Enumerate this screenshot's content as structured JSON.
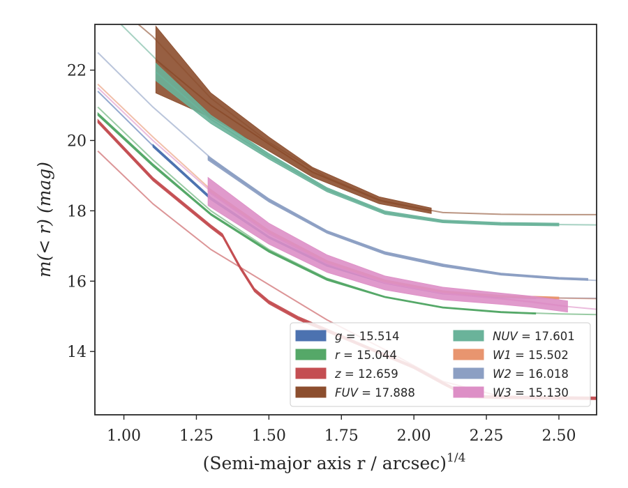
{
  "chart_data": {
    "type": "area",
    "xlabel": "(Semi-major axis r / arcsec)",
    "xlabel_sup": "1/4",
    "ylabel": "m(< r) (mag)",
    "xlim": [
      0.9,
      2.63
    ],
    "ylim": [
      23.3,
      12.2
    ],
    "y_inverted": true,
    "x_ticks": [
      "1.00",
      "1.25",
      "1.50",
      "1.75",
      "2.00",
      "2.25",
      "2.50"
    ],
    "x_tick_values": [
      1.0,
      1.25,
      1.5,
      1.75,
      2.0,
      2.25,
      2.5
    ],
    "y_ticks": [
      "14",
      "16",
      "18",
      "20",
      "22"
    ],
    "y_tick_values": [
      14,
      16,
      18,
      20,
      22
    ],
    "legend_position": "lower-right",
    "legend": [
      {
        "id": "g",
        "var": "g",
        "value": "15.514",
        "color": "#4c72b0"
      },
      {
        "id": "r",
        "var": "r",
        "value": "15.044",
        "color": "#55a868"
      },
      {
        "id": "z",
        "var": "z",
        "value": "12.659",
        "color": "#c44e52"
      },
      {
        "id": "fuv",
        "var": "FUV",
        "value": "17.888",
        "color": "#8c4e2e"
      },
      {
        "id": "nuv",
        "var": "NUV",
        "value": "17.601",
        "color": "#6ab39a"
      },
      {
        "id": "w1",
        "var": "W1",
        "value": "15.502",
        "color": "#e8956f"
      },
      {
        "id": "w2",
        "var": "W2",
        "value": "16.018",
        "color": "#8c9fc3"
      },
      {
        "id": "w3",
        "var": "W3",
        "value": "15.130",
        "color": "#dd8fc6"
      }
    ],
    "series": [
      {
        "id": "g",
        "data": {
          "x": [
            1.1,
            1.3,
            1.5,
            1.7,
            1.9,
            2.1,
            2.3,
            2.42
          ],
          "y": [
            19.85,
            18.35,
            17.25,
            16.45,
            15.95,
            15.65,
            15.55,
            15.52
          ],
          "w": [
            0.04,
            0.04,
            0.03,
            0.03,
            0.02,
            0.02,
            0.02,
            0.02
          ]
        },
        "model": {
          "x": [
            0.91,
            1.1,
            1.3,
            1.5,
            1.7,
            1.9,
            2.1,
            2.3,
            2.5,
            2.63
          ],
          "y": [
            21.4,
            19.85,
            18.35,
            17.25,
            16.45,
            15.95,
            15.65,
            15.55,
            15.52,
            15.51
          ]
        }
      },
      {
        "id": "r",
        "data": {
          "x": [
            0.91,
            1.1,
            1.3,
            1.5,
            1.7,
            1.9,
            2.1,
            2.3,
            2.42
          ],
          "y": [
            20.75,
            19.3,
            17.9,
            16.85,
            16.05,
            15.55,
            15.25,
            15.12,
            15.08
          ],
          "w": [
            0.04,
            0.04,
            0.03,
            0.03,
            0.03,
            0.02,
            0.02,
            0.02,
            0.02
          ]
        },
        "model": {
          "x": [
            0.91,
            1.1,
            1.3,
            1.5,
            1.7,
            1.9,
            2.1,
            2.3,
            2.5,
            2.63
          ],
          "y": [
            20.95,
            19.45,
            18.0,
            16.9,
            16.08,
            15.55,
            15.25,
            15.12,
            15.07,
            15.05
          ]
        }
      },
      {
        "id": "z",
        "data": {
          "x": [
            0.91,
            1.1,
            1.3,
            1.34,
            1.4,
            1.45,
            1.5,
            1.6,
            1.8,
            2.0,
            2.1,
            2.19,
            2.3,
            2.5,
            2.63
          ],
          "y": [
            20.55,
            18.9,
            17.55,
            17.3,
            16.4,
            15.75,
            15.4,
            14.95,
            14.25,
            13.55,
            13.1,
            12.72,
            12.7,
            12.68,
            12.67
          ],
          "w": [
            0.05,
            0.05,
            0.05,
            0.05,
            0.05,
            0.05,
            0.05,
            0.05,
            0.04,
            0.04,
            0.04,
            0.04,
            0.04,
            0.04,
            0.04
          ]
        },
        "model": {
          "x": [
            0.91,
            1.1,
            1.3,
            1.5,
            1.7,
            1.9,
            2.1,
            2.3,
            2.5,
            2.63
          ],
          "y": [
            19.7,
            18.2,
            16.9,
            15.9,
            14.9,
            14.05,
            13.15,
            12.72,
            12.68,
            12.67
          ]
        }
      },
      {
        "id": "fuv",
        "data": {
          "x": [
            1.11,
            1.3,
            1.5,
            1.65,
            1.88,
            2.06
          ],
          "y": [
            22.3,
            21.0,
            19.9,
            19.1,
            18.3,
            18.0
          ],
          "w": [
            0.95,
            0.35,
            0.2,
            0.14,
            0.1,
            0.08
          ]
        },
        "model": {
          "x": [
            1.05,
            1.1,
            1.3,
            1.5,
            1.7,
            1.9,
            2.1,
            2.3,
            2.5,
            2.63
          ],
          "y": [
            23.3,
            22.95,
            21.2,
            19.95,
            18.95,
            18.25,
            17.95,
            17.9,
            17.89,
            17.89
          ]
        }
      },
      {
        "id": "nuv",
        "data": {
          "x": [
            1.11,
            1.3,
            1.5,
            1.7,
            1.9,
            2.1,
            2.3,
            2.5
          ],
          "y": [
            21.95,
            20.6,
            19.55,
            18.6,
            17.95,
            17.7,
            17.63,
            17.61
          ],
          "w": [
            0.25,
            0.12,
            0.08,
            0.06,
            0.05,
            0.04,
            0.04,
            0.04
          ]
        },
        "model": {
          "x": [
            0.99,
            1.1,
            1.3,
            1.5,
            1.7,
            1.9,
            2.1,
            2.3,
            2.5,
            2.63
          ],
          "y": [
            23.3,
            22.4,
            20.7,
            19.6,
            18.65,
            17.95,
            17.7,
            17.63,
            17.61,
            17.6
          ]
        }
      },
      {
        "id": "w1",
        "data": {
          "x": [
            1.29,
            1.5,
            1.7,
            1.9,
            2.1,
            2.3,
            2.5
          ],
          "y": [
            18.6,
            17.4,
            16.55,
            16.0,
            15.7,
            15.57,
            15.52
          ],
          "w": [
            0.06,
            0.05,
            0.04,
            0.04,
            0.03,
            0.03,
            0.03
          ]
        },
        "model": {
          "x": [
            0.91,
            1.1,
            1.3,
            1.5,
            1.7,
            1.9,
            2.1,
            2.3,
            2.5,
            2.63
          ],
          "y": [
            21.6,
            20.1,
            18.6,
            17.4,
            16.55,
            16.0,
            15.7,
            15.57,
            15.52,
            15.5
          ]
        }
      },
      {
        "id": "w2",
        "data": {
          "x": [
            1.29,
            1.5,
            1.7,
            1.9,
            2.1,
            2.3,
            2.5,
            2.6
          ],
          "y": [
            19.5,
            18.3,
            17.4,
            16.8,
            16.45,
            16.2,
            16.08,
            16.05
          ],
          "w": [
            0.06,
            0.05,
            0.04,
            0.04,
            0.04,
            0.03,
            0.03,
            0.03
          ]
        },
        "model": {
          "x": [
            0.91,
            1.1,
            1.3,
            1.5,
            1.7,
            1.9,
            2.1,
            2.3,
            2.5,
            2.63
          ],
          "y": [
            22.5,
            20.95,
            19.5,
            18.3,
            17.4,
            16.8,
            16.45,
            16.2,
            16.07,
            16.02
          ]
        }
      },
      {
        "id": "w3",
        "data": {
          "x": [
            1.29,
            1.5,
            1.7,
            1.9,
            2.1,
            2.3,
            2.4,
            2.53
          ],
          "y": [
            18.55,
            17.35,
            16.5,
            15.95,
            15.65,
            15.5,
            15.42,
            15.28
          ],
          "w": [
            0.4,
            0.3,
            0.25,
            0.2,
            0.18,
            0.16,
            0.16,
            0.16
          ]
        },
        "model": {
          "x": [
            0.91,
            1.1,
            1.3,
            1.5,
            1.7,
            1.9,
            2.1,
            2.3,
            2.5,
            2.63
          ],
          "y": [
            21.5,
            20.0,
            18.55,
            17.35,
            16.5,
            15.95,
            15.65,
            15.5,
            15.3,
            15.2
          ]
        }
      }
    ]
  }
}
